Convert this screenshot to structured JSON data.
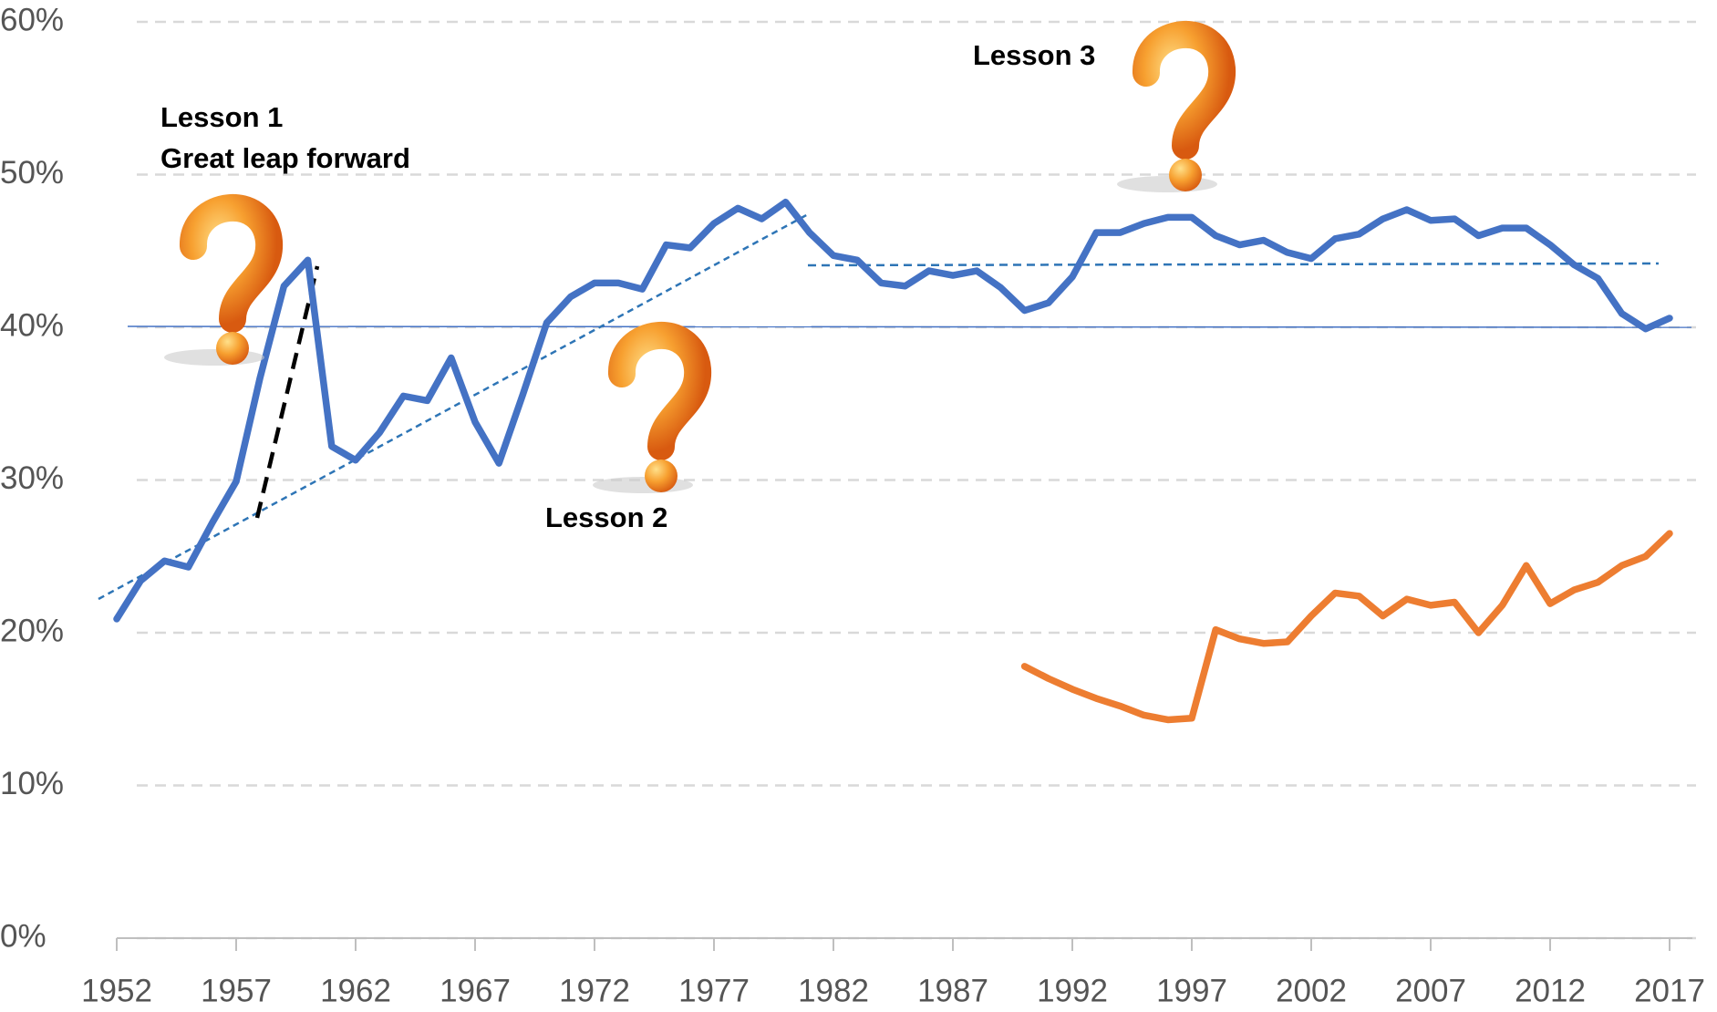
{
  "chart_data": {
    "type": "line",
    "x": [
      1952,
      1953,
      1954,
      1955,
      1956,
      1957,
      1958,
      1959,
      1960,
      1961,
      1962,
      1963,
      1964,
      1965,
      1966,
      1967,
      1968,
      1969,
      1970,
      1971,
      1972,
      1973,
      1974,
      1975,
      1976,
      1977,
      1978,
      1979,
      1980,
      1981,
      1982,
      1983,
      1984,
      1985,
      1986,
      1987,
      1988,
      1989,
      1990,
      1991,
      1992,
      1993,
      1994,
      1995,
      1996,
      1997,
      1998,
      1999,
      2000,
      2001,
      2002,
      2003,
      2004,
      2005,
      2006,
      2007,
      2008,
      2009,
      2010,
      2011,
      2012,
      2013,
      2014,
      2015,
      2016,
      2017
    ],
    "series": [
      {
        "color": "#4472c4",
        "values": [
          20.9,
          23.4,
          24.7,
          24.3,
          27.2,
          29.9,
          36.7,
          42.7,
          44.4,
          32.2,
          31.3,
          33.1,
          35.5,
          35.2,
          38.0,
          33.8,
          31.1,
          35.6,
          40.3,
          42.0,
          42.9,
          42.9,
          42.5,
          45.4,
          45.2,
          46.8,
          47.8,
          47.1,
          48.2,
          46.2,
          44.7,
          44.4,
          42.9,
          42.7,
          43.7,
          43.4,
          43.7,
          42.6,
          41.1,
          41.6,
          43.3,
          46.2,
          46.2,
          46.8,
          47.2,
          47.2,
          46.0,
          45.4,
          45.7,
          44.9,
          44.5,
          45.8,
          46.1,
          47.1,
          47.7,
          47.0,
          47.1,
          46.0,
          46.5,
          46.5,
          45.4,
          44.1,
          43.2,
          40.9,
          39.9,
          40.6
        ]
      },
      {
        "color": "#ed7d31",
        "values": [
          null,
          null,
          null,
          null,
          null,
          null,
          null,
          null,
          null,
          null,
          null,
          null,
          null,
          null,
          null,
          null,
          null,
          null,
          null,
          null,
          null,
          null,
          null,
          null,
          null,
          null,
          null,
          null,
          null,
          null,
          null,
          null,
          null,
          null,
          null,
          null,
          null,
          null,
          17.8,
          17.0,
          16.3,
          15.7,
          15.2,
          14.6,
          14.3,
          14.4,
          20.2,
          19.6,
          19.3,
          19.4,
          21.1,
          22.6,
          22.4,
          21.1,
          22.2,
          21.8,
          22.0,
          20.0,
          21.8,
          24.4,
          21.9,
          22.8,
          23.3,
          24.4,
          25.0,
          26.5
        ]
      }
    ],
    "xlim": [
      1952,
      2017
    ],
    "xticks": [
      1952,
      1957,
      1962,
      1967,
      1972,
      1977,
      1982,
      1987,
      1992,
      1997,
      2002,
      2007,
      2012,
      2017
    ],
    "ylim": [
      0,
      60
    ],
    "yticks": [
      {
        "value": 0,
        "label": "0%"
      },
      {
        "value": 10,
        "label": "10%"
      },
      {
        "value": 20,
        "label": "20%"
      },
      {
        "value": 30,
        "label": "30%"
      },
      {
        "value": 40,
        "label": "40%"
      },
      {
        "value": 50,
        "label": "50%"
      },
      {
        "value": 60,
        "label": "60%"
      }
    ],
    "grid": true,
    "annotations": [
      "Lesson 1",
      "Great leap forward",
      "Lesson 2",
      "Lesson 3"
    ]
  }
}
